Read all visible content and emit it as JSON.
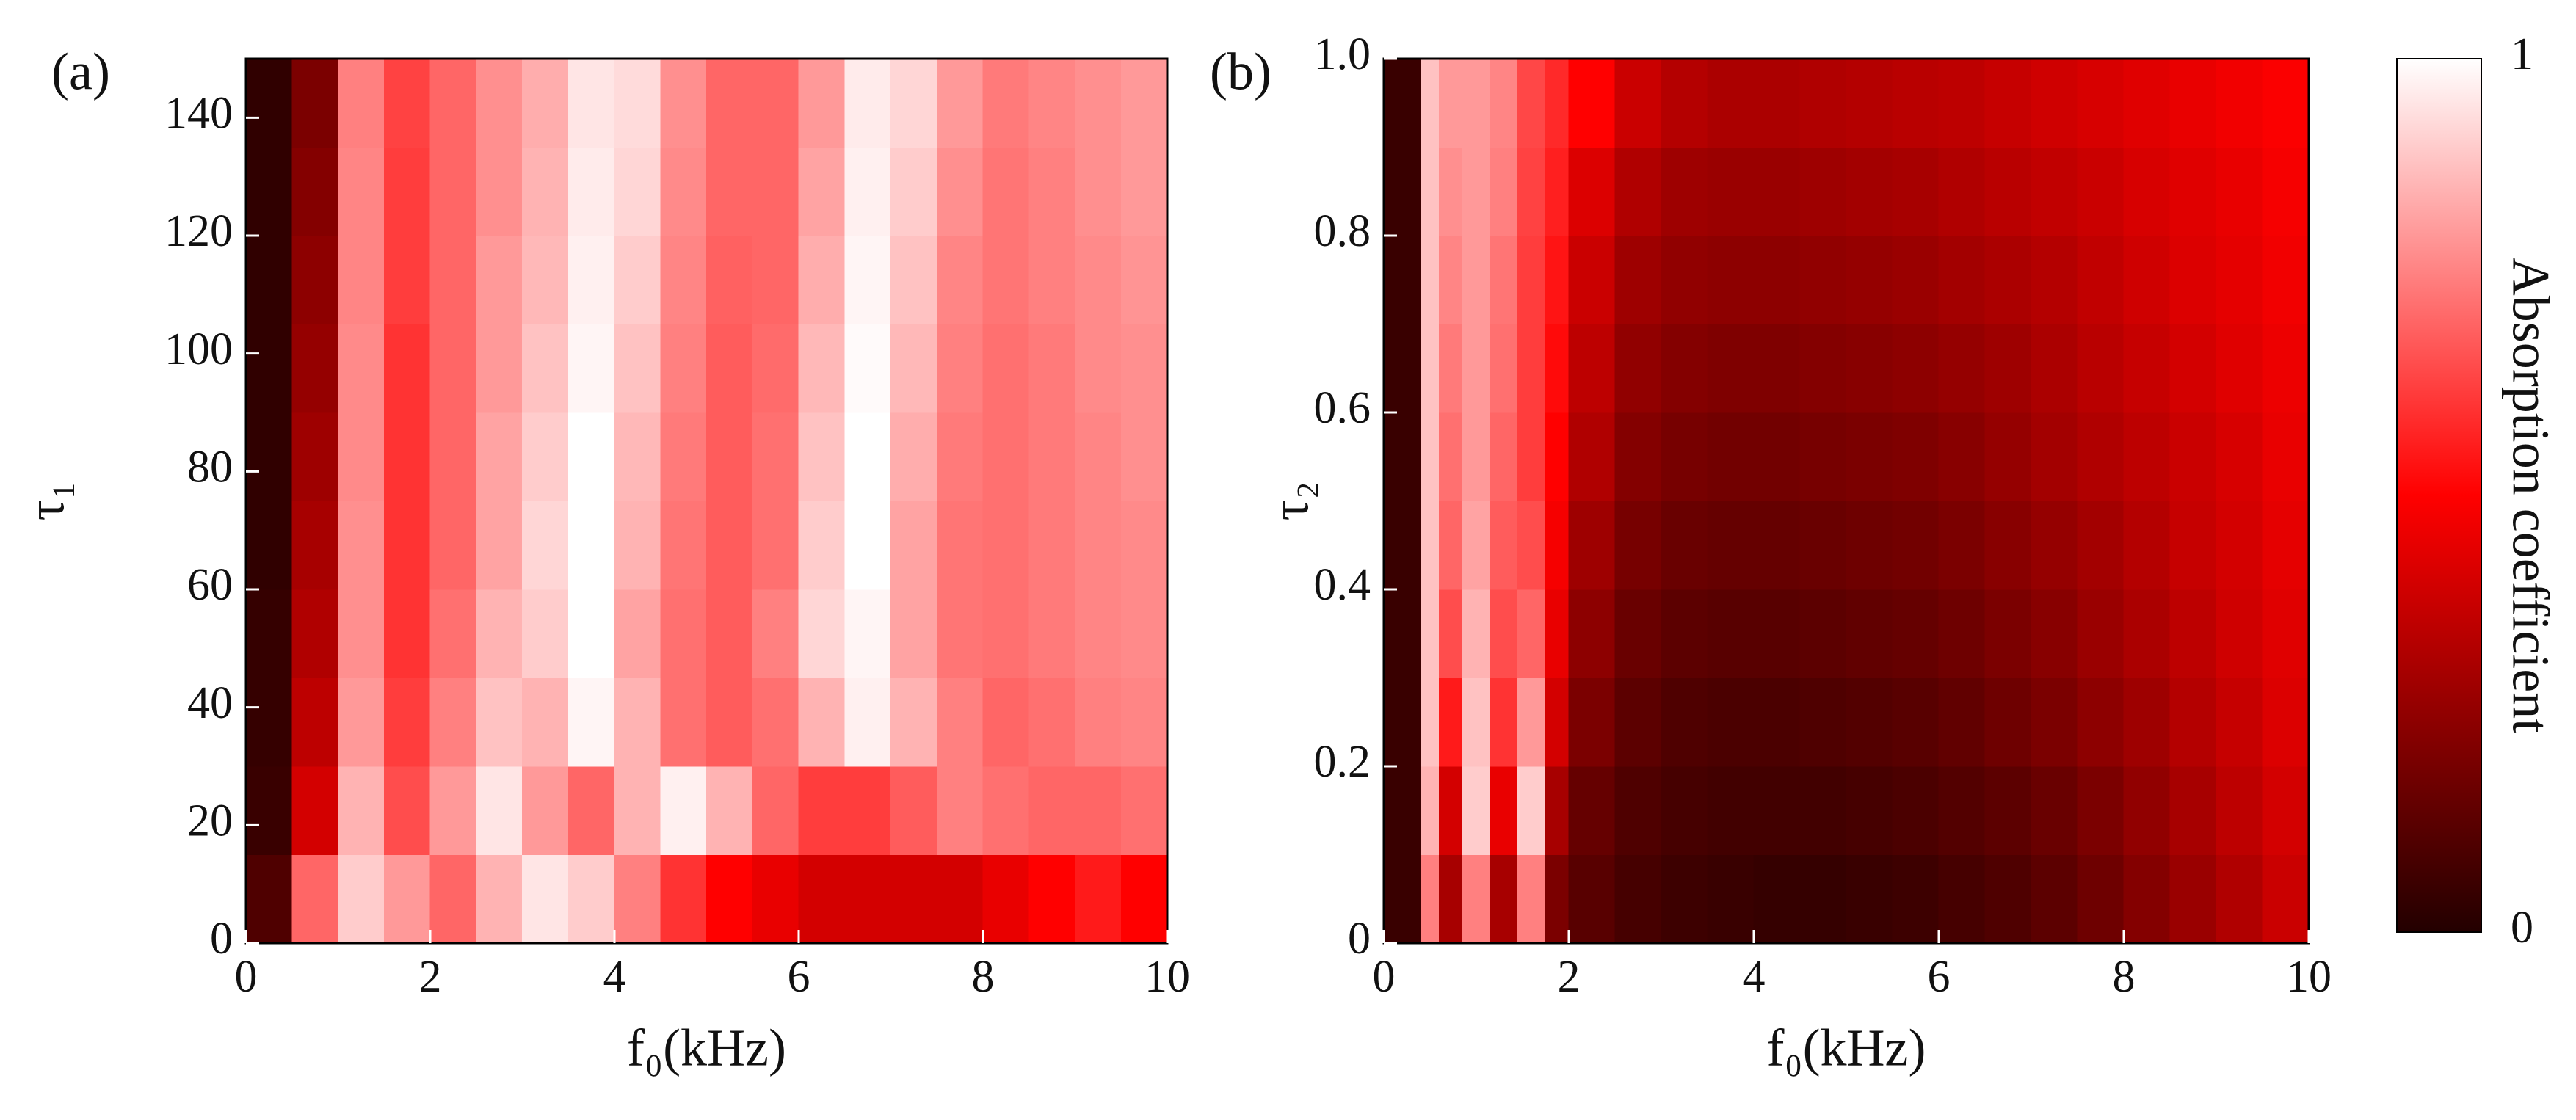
{
  "chart_data": [
    {
      "type": "heatmap",
      "panel_label": "(a)",
      "xlabel": "f₀(kHz)",
      "ylabel": "τ₁",
      "colormap": [
        "#230000",
        "#ff0000",
        "#ffffff"
      ],
      "xlim": [
        0,
        10
      ],
      "ylim": [
        0,
        150
      ],
      "xticks": [
        0,
        2,
        4,
        6,
        8,
        10
      ],
      "yticks": [
        0,
        20,
        40,
        60,
        80,
        100,
        120,
        140
      ],
      "xbins": [
        0,
        0.5,
        1,
        1.5,
        2,
        2.5,
        3,
        3.5,
        4,
        4.5,
        5,
        5.5,
        6,
        6.5,
        7,
        7.5,
        8,
        8.5,
        9,
        9.5,
        10
      ],
      "ybins": [
        0,
        15,
        30,
        45,
        60,
        75,
        90,
        105,
        120,
        135,
        150
      ],
      "z": [
        [
          0.1,
          0.7,
          0.9,
          0.8,
          0.7,
          0.85,
          0.95,
          0.9,
          0.75,
          0.6,
          0.5,
          0.45,
          0.4,
          0.4,
          0.4,
          0.4,
          0.45,
          0.5,
          0.55,
          0.5
        ],
        [
          0.05,
          0.4,
          0.85,
          0.65,
          0.8,
          0.95,
          0.8,
          0.7,
          0.85,
          0.97,
          0.85,
          0.7,
          0.62,
          0.62,
          0.68,
          0.75,
          0.72,
          0.7,
          0.7,
          0.72
        ],
        [
          0.04,
          0.35,
          0.8,
          0.62,
          0.75,
          0.88,
          0.85,
          0.98,
          0.85,
          0.72,
          0.68,
          0.72,
          0.85,
          0.97,
          0.85,
          0.75,
          0.7,
          0.72,
          0.75,
          0.76
        ],
        [
          0.04,
          0.32,
          0.78,
          0.6,
          0.72,
          0.85,
          0.9,
          1.0,
          0.82,
          0.72,
          0.68,
          0.75,
          0.92,
          0.98,
          0.82,
          0.73,
          0.72,
          0.74,
          0.76,
          0.77
        ],
        [
          0.03,
          0.3,
          0.78,
          0.6,
          0.7,
          0.82,
          0.92,
          1.0,
          0.85,
          0.73,
          0.68,
          0.72,
          0.9,
          1.0,
          0.82,
          0.73,
          0.72,
          0.74,
          0.76,
          0.77
        ],
        [
          0.03,
          0.28,
          0.77,
          0.6,
          0.7,
          0.82,
          0.9,
          1.0,
          0.86,
          0.74,
          0.68,
          0.72,
          0.88,
          1.0,
          0.84,
          0.74,
          0.72,
          0.74,
          0.76,
          0.78
        ],
        [
          0.03,
          0.26,
          0.77,
          0.6,
          0.7,
          0.8,
          0.88,
          0.98,
          0.88,
          0.75,
          0.68,
          0.71,
          0.86,
          0.99,
          0.86,
          0.75,
          0.72,
          0.74,
          0.77,
          0.78
        ],
        [
          0.03,
          0.24,
          0.76,
          0.62,
          0.7,
          0.8,
          0.86,
          0.97,
          0.9,
          0.76,
          0.69,
          0.7,
          0.84,
          0.98,
          0.88,
          0.76,
          0.73,
          0.75,
          0.77,
          0.79
        ],
        [
          0.03,
          0.22,
          0.76,
          0.62,
          0.7,
          0.78,
          0.85,
          0.96,
          0.92,
          0.77,
          0.7,
          0.7,
          0.82,
          0.97,
          0.9,
          0.78,
          0.73,
          0.75,
          0.78,
          0.8
        ],
        [
          0.03,
          0.2,
          0.75,
          0.63,
          0.7,
          0.78,
          0.84,
          0.95,
          0.93,
          0.78,
          0.7,
          0.7,
          0.8,
          0.96,
          0.92,
          0.8,
          0.74,
          0.76,
          0.78,
          0.8
        ]
      ]
    },
    {
      "type": "heatmap",
      "panel_label": "(b)",
      "xlabel": "f₀(kHz)",
      "ylabel": "τ₂",
      "colormap": [
        "#230000",
        "#ff0000",
        "#ffffff"
      ],
      "xlim": [
        0,
        10
      ],
      "ylim": [
        0,
        1
      ],
      "xticks": [
        0,
        2,
        4,
        6,
        8,
        10
      ],
      "yticks": [
        0,
        0.2,
        0.4,
        0.6,
        0.8,
        {
          "value": 1,
          "label": "1.0"
        }
      ],
      "xbins": [
        0,
        0.4,
        0.6,
        0.85,
        1.15,
        1.45,
        1.75,
        2,
        2.5,
        3,
        3.5,
        4,
        4.5,
        5,
        5.5,
        6,
        6.5,
        7,
        7.5,
        8,
        8.5,
        9,
        9.5,
        10
      ],
      "ybins": [
        0,
        0.1,
        0.2,
        0.3,
        0.4,
        0.5,
        0.6,
        0.7,
        0.8,
        0.9,
        1
      ],
      "z": [
        [
          0.05,
          0.75,
          0.3,
          0.75,
          0.3,
          0.75,
          0.2,
          0.12,
          0.08,
          0.06,
          0.05,
          0.04,
          0.04,
          0.05,
          0.06,
          0.08,
          0.1,
          0.13,
          0.17,
          0.22,
          0.27,
          0.32,
          0.38
        ],
        [
          0.05,
          0.85,
          0.4,
          0.9,
          0.45,
          0.9,
          0.3,
          0.15,
          0.1,
          0.08,
          0.07,
          0.07,
          0.07,
          0.08,
          0.09,
          0.11,
          0.13,
          0.16,
          0.2,
          0.25,
          0.3,
          0.35,
          0.4
        ],
        [
          0.05,
          0.88,
          0.55,
          0.88,
          0.6,
          0.8,
          0.4,
          0.2,
          0.13,
          0.1,
          0.09,
          0.09,
          0.1,
          0.11,
          0.12,
          0.14,
          0.17,
          0.2,
          0.24,
          0.28,
          0.33,
          0.37,
          0.42
        ],
        [
          0.05,
          0.88,
          0.65,
          0.85,
          0.65,
          0.7,
          0.45,
          0.24,
          0.16,
          0.13,
          0.12,
          0.12,
          0.13,
          0.14,
          0.15,
          0.17,
          0.2,
          0.23,
          0.27,
          0.31,
          0.35,
          0.39,
          0.43
        ],
        [
          0.05,
          0.88,
          0.7,
          0.82,
          0.68,
          0.65,
          0.48,
          0.28,
          0.19,
          0.16,
          0.15,
          0.15,
          0.16,
          0.17,
          0.18,
          0.2,
          0.23,
          0.26,
          0.29,
          0.33,
          0.37,
          0.4,
          0.44
        ],
        [
          0.05,
          0.88,
          0.72,
          0.8,
          0.7,
          0.62,
          0.5,
          0.32,
          0.22,
          0.19,
          0.18,
          0.18,
          0.19,
          0.2,
          0.21,
          0.23,
          0.26,
          0.29,
          0.32,
          0.35,
          0.38,
          0.41,
          0.45
        ],
        [
          0.05,
          0.88,
          0.74,
          0.8,
          0.72,
          0.62,
          0.52,
          0.35,
          0.25,
          0.22,
          0.21,
          0.21,
          0.22,
          0.23,
          0.24,
          0.26,
          0.28,
          0.31,
          0.34,
          0.37,
          0.4,
          0.43,
          0.46
        ],
        [
          0.05,
          0.88,
          0.76,
          0.8,
          0.73,
          0.62,
          0.54,
          0.38,
          0.28,
          0.25,
          0.24,
          0.24,
          0.25,
          0.26,
          0.27,
          0.29,
          0.31,
          0.33,
          0.36,
          0.39,
          0.42,
          0.44,
          0.47
        ],
        [
          0.05,
          0.88,
          0.78,
          0.8,
          0.75,
          0.63,
          0.56,
          0.42,
          0.32,
          0.28,
          0.27,
          0.27,
          0.28,
          0.29,
          0.3,
          0.32,
          0.34,
          0.36,
          0.38,
          0.41,
          0.43,
          0.45,
          0.48
        ],
        [
          0.05,
          0.88,
          0.8,
          0.8,
          0.76,
          0.64,
          0.58,
          0.5,
          0.38,
          0.33,
          0.31,
          0.31,
          0.32,
          0.33,
          0.34,
          0.35,
          0.37,
          0.39,
          0.41,
          0.43,
          0.45,
          0.47,
          0.49
        ]
      ],
      "colorbar": {
        "label": "Absorption coefficient",
        "zlim": [
          0,
          1
        ],
        "zticks": [
          0,
          1
        ]
      }
    }
  ]
}
